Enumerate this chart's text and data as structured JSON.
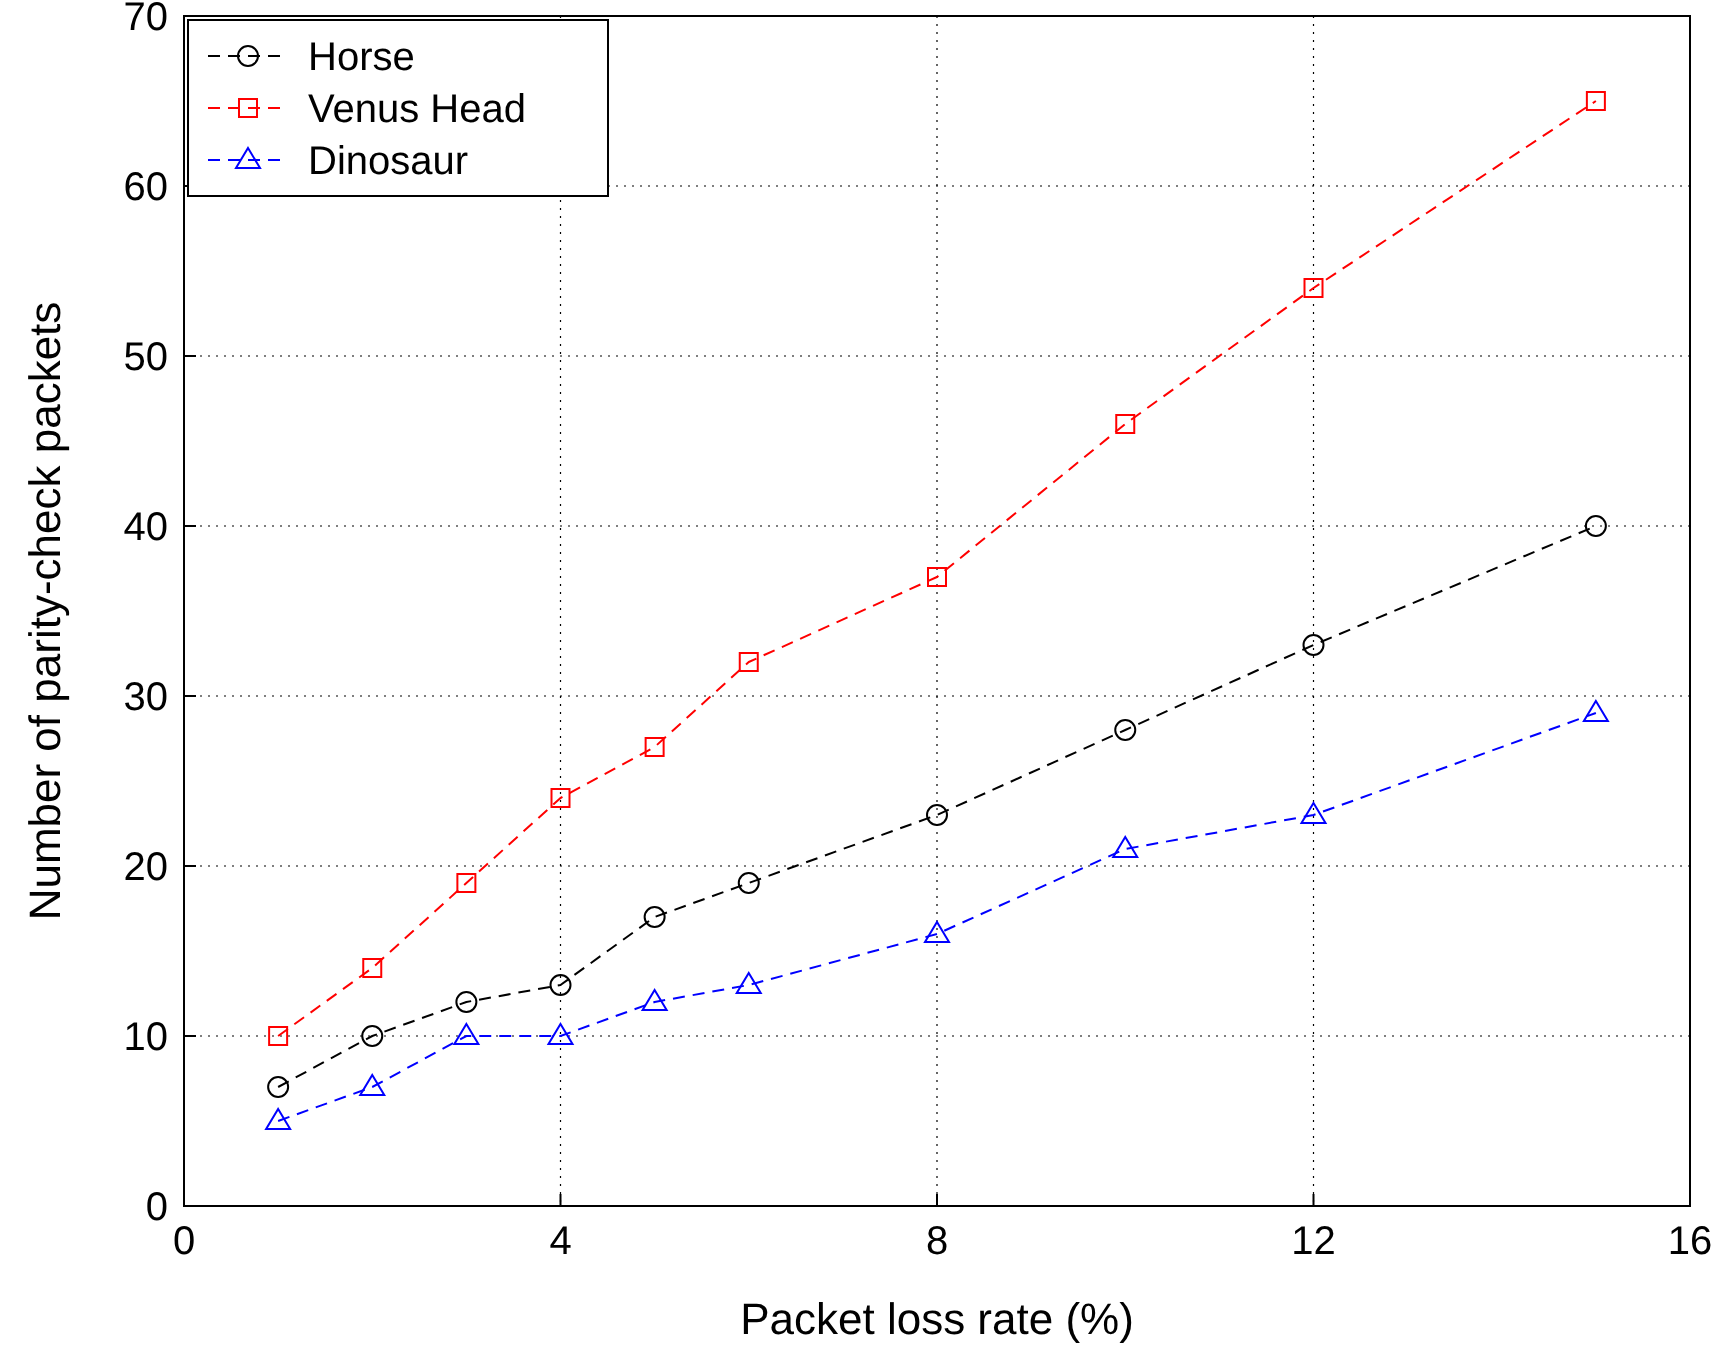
{
  "chart_data": {
    "type": "line",
    "xlabel": "Packet loss rate (%)",
    "ylabel": "Number of parity-check packets",
    "x": [
      1,
      2,
      3,
      4,
      5,
      6,
      8,
      10,
      12,
      15
    ],
    "xlim": [
      0,
      16
    ],
    "xticks": [
      0,
      4,
      8,
      12,
      16
    ],
    "ylim": [
      0,
      70
    ],
    "yticks": [
      0,
      10,
      20,
      30,
      40,
      50,
      60,
      70
    ],
    "grid": true,
    "legend": "top left",
    "line_style": "dashed",
    "series": [
      {
        "name": "Horse",
        "color": "#000000",
        "marker": "circle",
        "values": [
          7,
          10,
          12,
          13,
          17,
          19,
          23,
          28,
          33,
          40
        ]
      },
      {
        "name": "Venus Head",
        "color": "#ff0000",
        "marker": "square",
        "values": [
          10,
          14,
          19,
          24,
          27,
          32,
          37,
          46,
          54,
          65
        ]
      },
      {
        "name": "Dinosaur",
        "color": "#0000ff",
        "marker": "triangle",
        "values": [
          5,
          7,
          10,
          10,
          12,
          13,
          16,
          21,
          23,
          29
        ]
      }
    ]
  }
}
